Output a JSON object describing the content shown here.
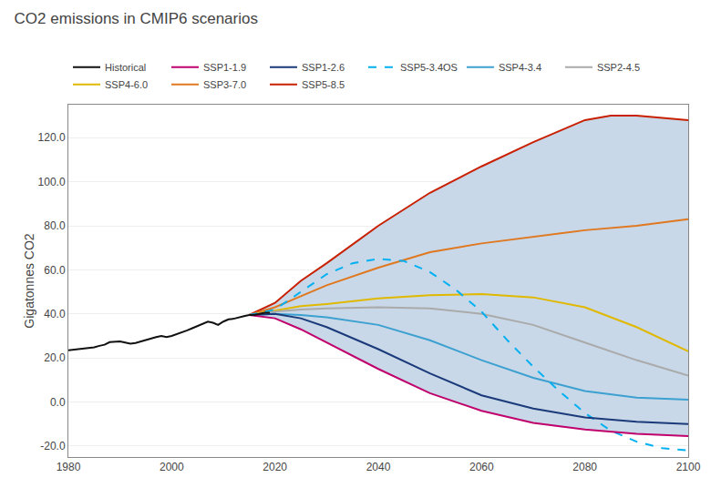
{
  "chart_data": {
    "type": "line",
    "title": "CO2 emissions in CMIP6 scenarios",
    "ylabel": "Gigatonnes CO2",
    "xlim": [
      1980,
      2100
    ],
    "ylim": [
      -25,
      135
    ],
    "xticks": [
      1980,
      2000,
      2020,
      2040,
      2060,
      2080,
      2100
    ],
    "yticks": [
      {
        "value": -20,
        "label": "-20.0"
      },
      {
        "value": 0,
        "label": "0.0"
      },
      {
        "value": 20,
        "label": "20.0"
      },
      {
        "value": 40,
        "label": "40.0"
      },
      {
        "value": 60,
        "label": "60.0"
      },
      {
        "value": 80,
        "label": "80.0"
      },
      {
        "value": 100,
        "label": "100.0"
      },
      {
        "value": 120,
        "label": "120.0"
      }
    ],
    "grid": "y",
    "legend": "top",
    "band": {
      "color": "#c8d8e8",
      "x": [
        2015,
        2020,
        2025,
        2030,
        2035,
        2040,
        2045,
        2050,
        2055,
        2060,
        2065,
        2070,
        2075,
        2080,
        2085,
        2090,
        2095,
        2100
      ],
      "upper": [
        39.5,
        45.0,
        55.0,
        63.0,
        72.0,
        80.0,
        87.5,
        95.0,
        101.0,
        107.0,
        112.5,
        118.0,
        123.0,
        128.0,
        130.0,
        130.0,
        129.0,
        128.0
      ],
      "lower": [
        39.5,
        38.0,
        33.0,
        27.0,
        20.5,
        15.0,
        9.0,
        4.0,
        -0.5,
        -4.0,
        -7.0,
        -9.5,
        -11.5,
        -12.5,
        -13.5,
        -14.5,
        -15.0,
        -15.5
      ]
    },
    "hlines": [
      {
        "value": 0,
        "color": "#888888"
      }
    ],
    "series": [
      {
        "name": "SSP5-8.5",
        "color": "#c82000",
        "line_style": "solid",
        "x": [
          2015,
          2020,
          2025,
          2030,
          2040,
          2050,
          2060,
          2070,
          2080,
          2085,
          2090,
          2095,
          2100
        ],
        "values": [
          39.5,
          45.0,
          55.0,
          63.0,
          80.0,
          95.0,
          107.0,
          118.0,
          128.0,
          130.0,
          130.0,
          129.0,
          128.0
        ]
      },
      {
        "name": "SSP3-7.0",
        "color": "#e07820",
        "line_style": "solid",
        "x": [
          2015,
          2020,
          2025,
          2030,
          2040,
          2050,
          2060,
          2070,
          2080,
          2090,
          2100
        ],
        "values": [
          39.5,
          43.0,
          48.0,
          53.0,
          61.0,
          68.0,
          72.0,
          75.0,
          78.0,
          80.0,
          83.0
        ]
      },
      {
        "name": "SSP4-6.0",
        "color": "#e0b800",
        "line_style": "solid",
        "x": [
          2015,
          2020,
          2025,
          2030,
          2040,
          2050,
          2060,
          2070,
          2080,
          2090,
          2100
        ],
        "values": [
          39.5,
          41.5,
          43.5,
          44.5,
          47.0,
          48.5,
          49.0,
          47.5,
          43.0,
          34.0,
          23.0
        ]
      },
      {
        "name": "SSP2-4.5",
        "color": "#aaaaaa",
        "line_style": "solid",
        "x": [
          2015,
          2020,
          2025,
          2030,
          2040,
          2050,
          2060,
          2070,
          2080,
          2090,
          2100
        ],
        "values": [
          39.5,
          41.0,
          42.0,
          42.5,
          43.0,
          42.5,
          40.0,
          35.0,
          27.0,
          19.0,
          12.0
        ]
      },
      {
        "name": "SSP4-3.4",
        "color": "#3ca0d0",
        "line_style": "solid",
        "x": [
          2015,
          2020,
          2025,
          2030,
          2040,
          2050,
          2060,
          2070,
          2080,
          2090,
          2100
        ],
        "values": [
          39.5,
          40.0,
          39.5,
          38.5,
          35.0,
          28.0,
          19.0,
          11.0,
          5.0,
          2.0,
          1.0
        ]
      },
      {
        "name": "SSP5-3.4OS",
        "color": "#00b0f0",
        "line_style": "dashed",
        "x": [
          2015,
          2020,
          2025,
          2030,
          2035,
          2040,
          2045,
          2050,
          2055,
          2060,
          2065,
          2070,
          2075,
          2080,
          2085,
          2090,
          2095,
          2100
        ],
        "values": [
          39.5,
          42.0,
          50.0,
          58.0,
          63.0,
          65.0,
          64.0,
          59.0,
          51.0,
          41.0,
          28.0,
          16.0,
          5.0,
          -5.0,
          -13.0,
          -18.0,
          -21.0,
          -22.0
        ]
      },
      {
        "name": "SSP1-2.6",
        "color": "#1a3a7a",
        "line_style": "solid",
        "x": [
          2015,
          2020,
          2025,
          2030,
          2040,
          2050,
          2060,
          2070,
          2080,
          2090,
          2100
        ],
        "values": [
          39.5,
          40.0,
          38.0,
          34.0,
          24.0,
          13.0,
          3.0,
          -3.0,
          -7.0,
          -9.0,
          -10.0
        ]
      },
      {
        "name": "SSP1-1.9",
        "color": "#c0006c",
        "line_style": "solid",
        "x": [
          2015,
          2020,
          2025,
          2030,
          2040,
          2050,
          2060,
          2070,
          2080,
          2090,
          2100
        ],
        "values": [
          39.5,
          38.0,
          33.0,
          27.0,
          15.0,
          4.0,
          -4.0,
          -9.5,
          -12.5,
          -14.5,
          -15.5
        ]
      },
      {
        "name": "Historical",
        "color": "#111111",
        "line_style": "solid",
        "x": [
          1980,
          1981,
          1982,
          1983,
          1984,
          1985,
          1986,
          1987,
          1988,
          1989,
          1990,
          1991,
          1992,
          1993,
          1994,
          1995,
          1996,
          1997,
          1998,
          1999,
          2000,
          2001,
          2002,
          2003,
          2004,
          2005,
          2006,
          2007,
          2008,
          2009,
          2010,
          2011,
          2012,
          2013,
          2014,
          2015,
          2016,
          2017,
          2018,
          2019
        ],
        "values": [
          23.5,
          23.8,
          24.0,
          24.3,
          24.5,
          24.8,
          25.5,
          26.0,
          27.2,
          27.3,
          27.5,
          27.0,
          26.5,
          26.8,
          27.5,
          28.0,
          29.0,
          29.5,
          30.0,
          29.5,
          30.0,
          30.8,
          31.5,
          32.5,
          33.5,
          34.5,
          35.5,
          36.5,
          36.0,
          35.0,
          36.5,
          37.5,
          37.8,
          38.5,
          39.0,
          39.5,
          39.5,
          40.0,
          40.5,
          40.5
        ]
      }
    ]
  }
}
